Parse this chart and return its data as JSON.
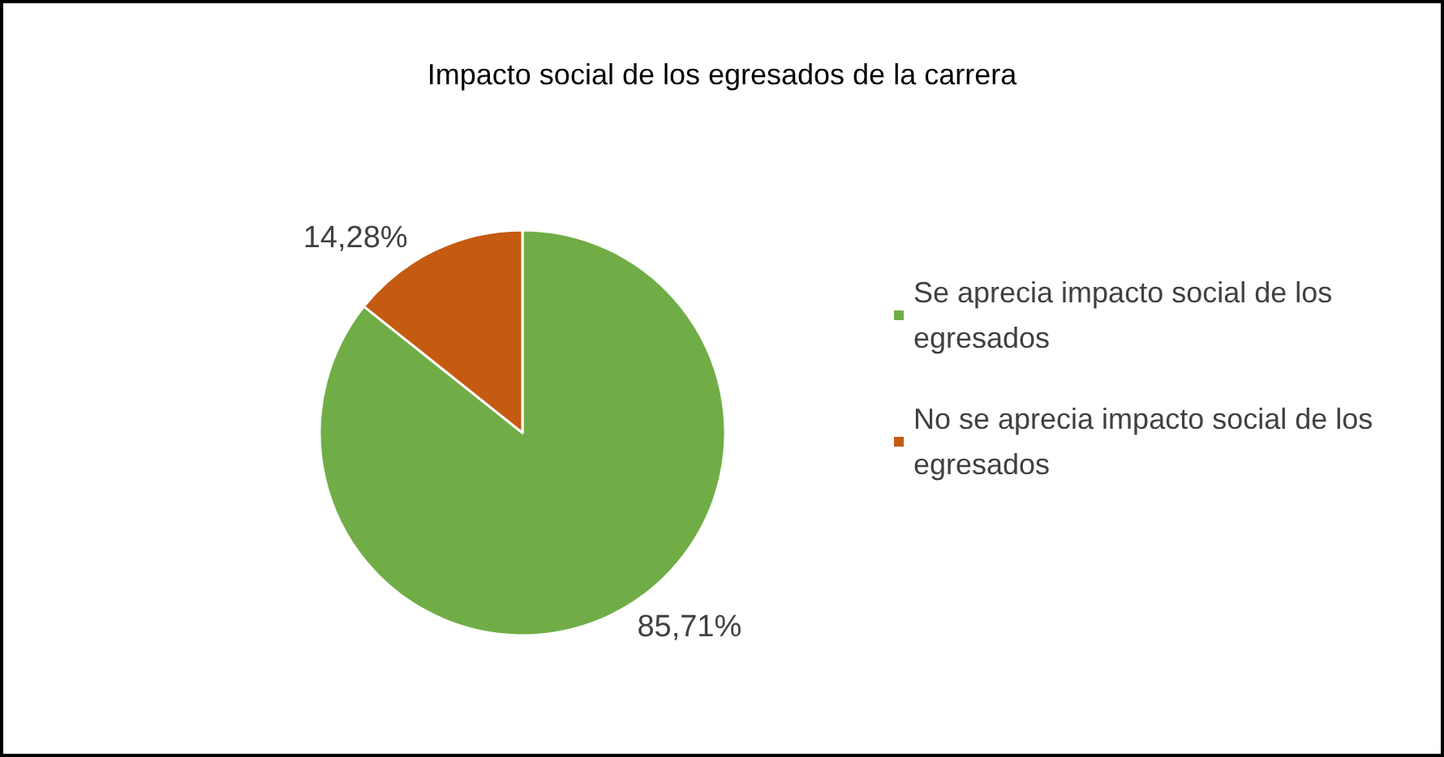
{
  "chart_data": {
    "type": "pie",
    "title": "Impacto social de los egresados de la carrera",
    "categories": [
      "Se aprecia impacto social de los egresados",
      "No se aprecia impacto social de los egresados"
    ],
    "values": [
      85.71,
      14.28
    ],
    "colors": [
      "#70ad47",
      "#c55a11"
    ],
    "value_labels": [
      "85,71%",
      "14,28%"
    ],
    "legend": "right"
  }
}
